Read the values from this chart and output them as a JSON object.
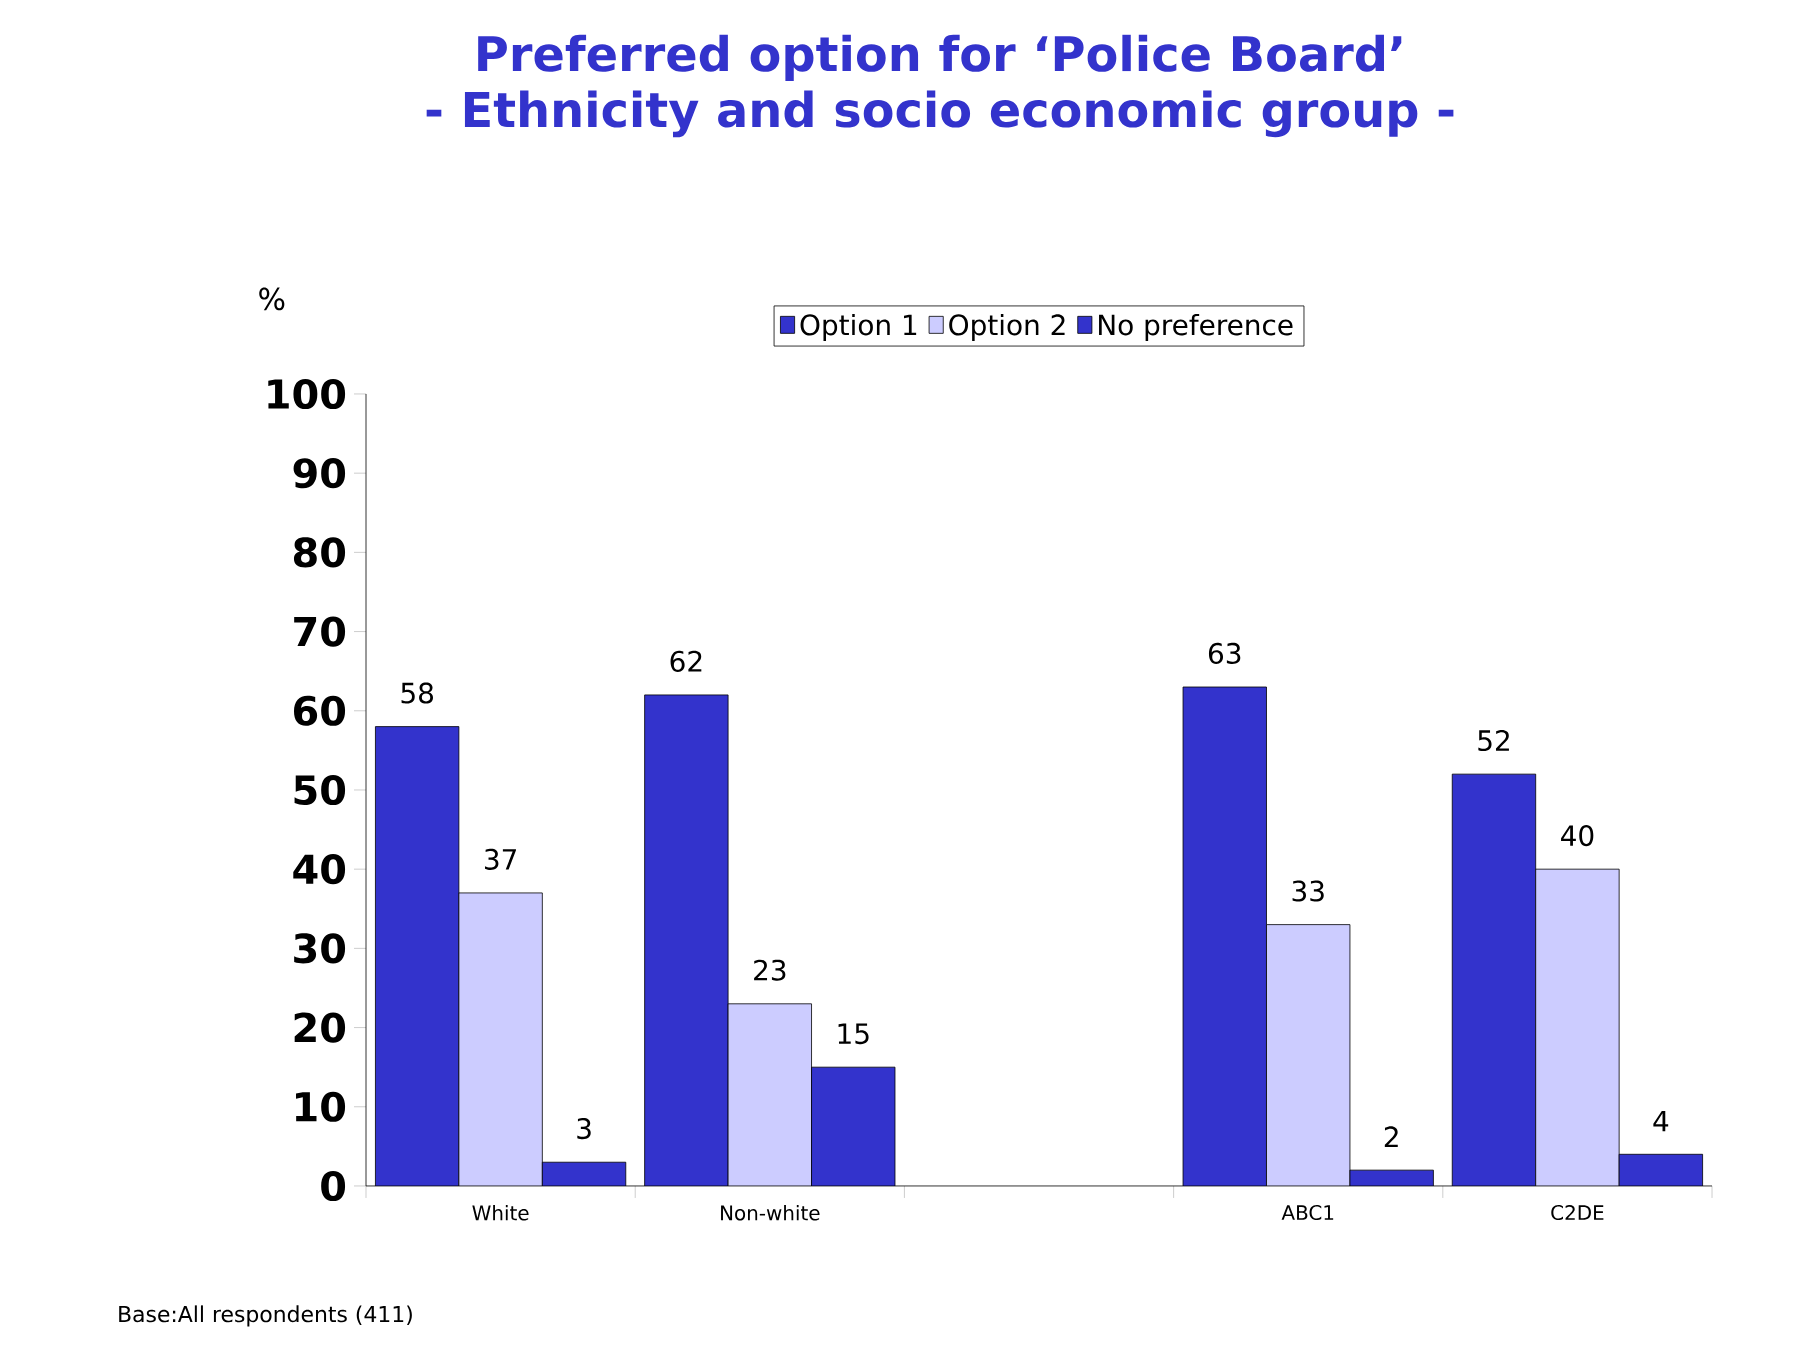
{
  "chart_data": {
    "type": "bar",
    "title": "Preferred option for ‘Police Board’",
    "subtitle": "- Ethnicity and socio economic group -",
    "ylabel": "%",
    "categories": [
      "White",
      "Non-white",
      null,
      "ABC1",
      "C2DE"
    ],
    "series": [
      {
        "name": "Option 1",
        "color": "#3333cc",
        "values": [
          58,
          62,
          null,
          63,
          52
        ]
      },
      {
        "name": "Option 2",
        "color": "#ccccff",
        "values": [
          37,
          23,
          null,
          33,
          40
        ]
      },
      {
        "name": "No preference",
        "color": "#3333cc",
        "values": [
          3,
          15,
          null,
          2,
          4
        ]
      }
    ],
    "ylim": [
      0,
      100
    ],
    "yticks": [
      0,
      10,
      20,
      30,
      40,
      50,
      60,
      70,
      80,
      90,
      100
    ],
    "data_labels": true,
    "legend": "top",
    "grid": false,
    "annotations": [
      "Base:All respondents (411)"
    ]
  }
}
